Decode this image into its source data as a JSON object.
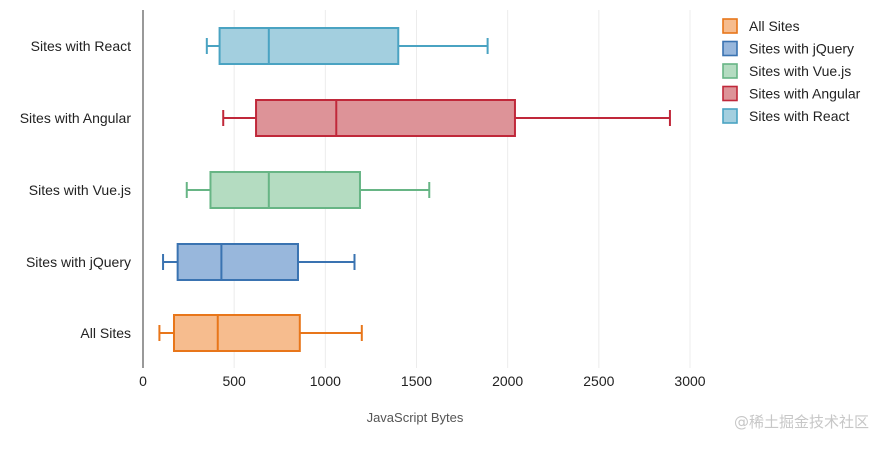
{
  "chart_data": {
    "type": "boxplot",
    "orientation": "horizontal",
    "xlabel": "JavaScript Bytes",
    "xlim": [
      0,
      3000
    ],
    "xticks": [
      0,
      500,
      1000,
      1500,
      2000,
      2500,
      3000
    ],
    "grid": true,
    "legend_position": "top-right",
    "categories": [
      "All Sites",
      "Sites with jQuery",
      "Sites with Vue.js",
      "Sites with Angular",
      "Sites with React"
    ],
    "series": [
      {
        "name": "All Sites",
        "color": "#e8761a",
        "fill": "#f6bc8e",
        "min": 90,
        "q1": 170,
        "median": 410,
        "q3": 860,
        "max": 1200
      },
      {
        "name": "Sites with jQuery",
        "color": "#3a73b1",
        "fill": "#98b7dc",
        "min": 110,
        "q1": 190,
        "median": 430,
        "q3": 850,
        "max": 1160
      },
      {
        "name": "Sites with Vue.js",
        "color": "#67b585",
        "fill": "#b4dcc1",
        "min": 240,
        "q1": 370,
        "median": 690,
        "q3": 1190,
        "max": 1570
      },
      {
        "name": "Sites with Angular",
        "color": "#c0283a",
        "fill": "#dd9398",
        "min": 440,
        "q1": 620,
        "median": 1060,
        "q3": 2040,
        "max": 2890
      },
      {
        "name": "Sites with React",
        "color": "#4aa3c2",
        "fill": "#a3cfdf",
        "min": 350,
        "q1": 420,
        "median": 690,
        "q3": 1400,
        "max": 1890
      }
    ]
  },
  "watermark": "@稀土掘金技术社区"
}
